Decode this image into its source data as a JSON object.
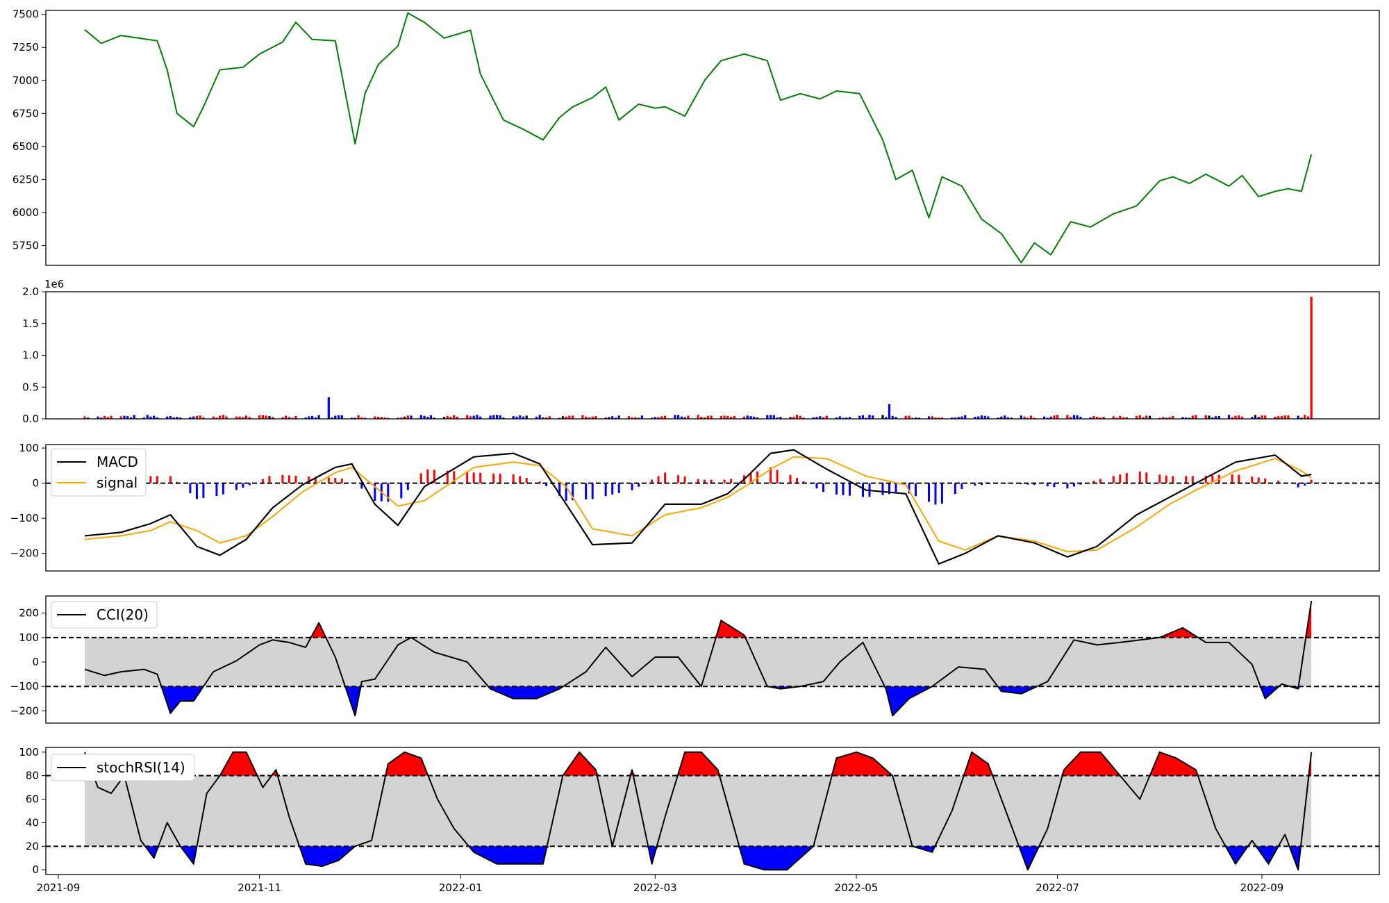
{
  "chart_data": [
    {
      "type": "line",
      "panel": "price",
      "color": "#008000",
      "ylim": [
        5600,
        7530
      ],
      "yticks": [
        5750,
        6000,
        6250,
        6500,
        6750,
        7000,
        7250,
        7500
      ],
      "x": [
        "2021-09-09",
        "2021-09-14",
        "2021-09-20",
        "2021-10-01",
        "2021-10-04",
        "2021-10-07",
        "2021-10-12",
        "2021-10-15",
        "2021-10-20",
        "2021-10-27",
        "2021-11-01",
        "2021-11-08",
        "2021-11-12",
        "2021-11-17",
        "2021-11-24",
        "2021-11-30",
        "2021-12-03",
        "2021-12-07",
        "2021-12-13",
        "2021-12-16",
        "2021-12-21",
        "2021-12-27",
        "2022-01-04",
        "2022-01-07",
        "2022-01-14",
        "2022-01-20",
        "2022-01-26",
        "2022-01-31",
        "2022-02-04",
        "2022-02-10",
        "2022-02-14",
        "2022-02-18",
        "2022-02-24",
        "2022-03-01",
        "2022-03-04",
        "2022-03-10",
        "2022-03-16",
        "2022-03-21",
        "2022-03-28",
        "2022-04-04",
        "2022-04-08",
        "2022-04-14",
        "2022-04-20",
        "2022-04-25",
        "2022-05-02",
        "2022-05-09",
        "2022-05-13",
        "2022-05-18",
        "2022-05-23",
        "2022-05-27",
        "2022-06-02",
        "2022-06-08",
        "2022-06-14",
        "2022-06-20",
        "2022-06-24",
        "2022-06-29",
        "2022-07-05",
        "2022-07-11",
        "2022-07-18",
        "2022-07-25",
        "2022-08-01",
        "2022-08-05",
        "2022-08-10",
        "2022-08-15",
        "2022-08-22",
        "2022-08-26",
        "2022-08-31",
        "2022-09-05",
        "2022-09-09",
        "2022-09-13",
        "2022-09-16"
      ],
      "values": [
        7385,
        7280,
        7340,
        7300,
        7080,
        6750,
        6650,
        6800,
        7080,
        7100,
        7200,
        7290,
        7440,
        7310,
        7300,
        6520,
        6900,
        7120,
        7260,
        7510,
        7440,
        7320,
        7380,
        7050,
        6700,
        6630,
        6550,
        6720,
        6800,
        6870,
        6950,
        6700,
        6820,
        6790,
        6800,
        6730,
        7000,
        7150,
        7200,
        7150,
        6850,
        6900,
        6860,
        6920,
        6900,
        6550,
        6250,
        6320,
        5960,
        6270,
        6200,
        5950,
        5840,
        5620,
        5770,
        5680,
        5930,
        5890,
        5990,
        6050,
        6240,
        6270,
        6220,
        6290,
        6200,
        6280,
        6120,
        6160,
        6180,
        6160,
        6440
      ]
    },
    {
      "type": "bar",
      "panel": "volume",
      "exponent_label": "1e6",
      "ylim": [
        0,
        2.0
      ],
      "yticks": [
        "0.0",
        "0.5",
        "1.0",
        "1.5",
        "2.0"
      ],
      "colors": {
        "up": "#ff0000",
        "down": "#0000ff",
        "flat": "#000000"
      },
      "notable_bars": [
        {
          "x": "2021-11-22",
          "value": 0.34,
          "color": "#0000ff"
        },
        {
          "x": "2022-05-11",
          "value": 0.23,
          "color": "#0000ff"
        },
        {
          "x": "2022-09-16",
          "value": 1.92,
          "color": "#ff0000"
        }
      ],
      "typical_value": 0.04
    },
    {
      "type": "line",
      "panel": "macd",
      "ylim": [
        -250,
        110
      ],
      "yticks": [
        -200,
        -100,
        0,
        100
      ],
      "legend": [
        "MACD",
        "signal"
      ],
      "series": [
        {
          "name": "MACD",
          "color": "#000000",
          "x": [
            "2021-09-09",
            "2021-09-20",
            "2021-09-29",
            "2021-10-05",
            "2021-10-13",
            "2021-10-20",
            "2021-10-28",
            "2021-11-05",
            "2021-11-14",
            "2021-11-24",
            "2021-11-29",
            "2021-12-06",
            "2021-12-13",
            "2021-12-21",
            "2022-01-05",
            "2022-01-17",
            "2022-01-25",
            "2022-02-02",
            "2022-02-10",
            "2022-02-22",
            "2022-03-04",
            "2022-03-15",
            "2022-03-23",
            "2022-03-29",
            "2022-04-05",
            "2022-04-12",
            "2022-04-22",
            "2022-05-04",
            "2022-05-16",
            "2022-05-26",
            "2022-06-03",
            "2022-06-13",
            "2022-06-24",
            "2022-07-04",
            "2022-07-13",
            "2022-07-25",
            "2022-08-04",
            "2022-08-12",
            "2022-08-24",
            "2022-09-05",
            "2022-09-13",
            "2022-09-16"
          ],
          "values": [
            -150,
            -140,
            -115,
            -90,
            -180,
            -205,
            -160,
            -70,
            -5,
            45,
            55,
            -60,
            -120,
            -10,
            75,
            85,
            55,
            -60,
            -175,
            -170,
            -60,
            -60,
            -30,
            20,
            85,
            95,
            40,
            -20,
            -30,
            -230,
            -200,
            -150,
            -170,
            -210,
            -180,
            -90,
            -40,
            0,
            60,
            80,
            20,
            25
          ]
        },
        {
          "name": "signal",
          "color": "#ffa500",
          "x": [
            "2021-09-09",
            "2021-09-20",
            "2021-09-29",
            "2021-10-05",
            "2021-10-13",
            "2021-10-20",
            "2021-10-28",
            "2021-11-05",
            "2021-11-14",
            "2021-11-24",
            "2021-11-29",
            "2021-12-06",
            "2021-12-13",
            "2021-12-21",
            "2022-01-05",
            "2022-01-17",
            "2022-01-25",
            "2022-02-02",
            "2022-02-10",
            "2022-02-22",
            "2022-03-04",
            "2022-03-15",
            "2022-03-23",
            "2022-03-29",
            "2022-04-05",
            "2022-04-12",
            "2022-04-22",
            "2022-05-04",
            "2022-05-16",
            "2022-05-26",
            "2022-06-03",
            "2022-06-13",
            "2022-06-24",
            "2022-07-04",
            "2022-07-13",
            "2022-07-25",
            "2022-08-04",
            "2022-08-12",
            "2022-08-24",
            "2022-09-05",
            "2022-09-13",
            "2022-09-16"
          ],
          "values": [
            -160,
            -150,
            -135,
            -110,
            -135,
            -170,
            -150,
            -95,
            -25,
            30,
            45,
            -10,
            -65,
            -50,
            45,
            60,
            50,
            -10,
            -130,
            -150,
            -90,
            -70,
            -40,
            -5,
            40,
            75,
            70,
            20,
            -5,
            -165,
            -190,
            -150,
            -165,
            -195,
            -190,
            -125,
            -60,
            -20,
            35,
            70,
            35,
            15
          ]
        }
      ],
      "histogram": {
        "up_color": "#ff0000",
        "down_color": "#0000ff",
        "note": "MACD minus signal"
      }
    },
    {
      "type": "line",
      "panel": "cci",
      "ylim": [
        -250,
        270
      ],
      "yticks": [
        -200,
        -100,
        0,
        100,
        200
      ],
      "thresholds": [
        100,
        -100
      ],
      "band_color": "#d3d3d3",
      "overbought_color": "#ff0000",
      "oversold_color": "#0000ff",
      "legend": [
        "CCI(20)"
      ],
      "series": [
        {
          "name": "CCI(20)",
          "color": "#000000",
          "x": [
            "2021-09-09",
            "2021-09-15",
            "2021-09-20",
            "2021-09-27",
            "2021-10-01",
            "2021-10-05",
            "2021-10-08",
            "2021-10-12",
            "2021-10-18",
            "2021-10-25",
            "2021-11-01",
            "2021-11-05",
            "2021-11-10",
            "2021-11-15",
            "2021-11-19",
            "2021-11-24",
            "2021-11-30",
            "2021-12-02",
            "2021-12-06",
            "2021-12-13",
            "2021-12-17",
            "2021-12-24",
            "2022-01-03",
            "2022-01-10",
            "2022-01-17",
            "2022-01-24",
            "2022-01-31",
            "2022-02-08",
            "2022-02-14",
            "2022-02-22",
            "2022-03-01",
            "2022-03-08",
            "2022-03-15",
            "2022-03-21",
            "2022-03-28",
            "2022-04-04",
            "2022-04-08",
            "2022-04-14",
            "2022-04-21",
            "2022-04-26",
            "2022-05-03",
            "2022-05-10",
            "2022-05-12",
            "2022-05-17",
            "2022-05-24",
            "2022-06-01",
            "2022-06-09",
            "2022-06-14",
            "2022-06-20",
            "2022-06-28",
            "2022-07-06",
            "2022-07-13",
            "2022-07-20",
            "2022-08-01",
            "2022-08-08",
            "2022-08-15",
            "2022-08-22",
            "2022-08-29",
            "2022-09-02",
            "2022-09-07",
            "2022-09-12",
            "2022-09-16"
          ],
          "values": [
            -30,
            -55,
            -40,
            -30,
            -50,
            -210,
            -160,
            -160,
            -40,
            5,
            70,
            90,
            80,
            60,
            160,
            20,
            -220,
            -80,
            -70,
            70,
            100,
            40,
            0,
            -110,
            -150,
            -150,
            -110,
            -40,
            60,
            -60,
            20,
            20,
            -100,
            170,
            110,
            -100,
            -110,
            -100,
            -80,
            0,
            80,
            -110,
            -220,
            -150,
            -100,
            -20,
            -30,
            -120,
            -130,
            -80,
            90,
            70,
            80,
            100,
            140,
            80,
            80,
            -10,
            -150,
            -90,
            -110,
            250
          ]
        }
      ]
    },
    {
      "type": "line",
      "panel": "stochrsi",
      "ylim": [
        -4,
        104
      ],
      "yticks": [
        0,
        20,
        40,
        60,
        80,
        100
      ],
      "thresholds": [
        80,
        20
      ],
      "band_color": "#d3d3d3",
      "overbought_color": "#ff0000",
      "oversold_color": "#0000ff",
      "legend": [
        "stochRSI(14)"
      ],
      "series": [
        {
          "name": "stochRSI(14)",
          "color": "#000000",
          "x": [
            "2021-09-09",
            "2021-09-13",
            "2021-09-17",
            "2021-09-21",
            "2021-09-26",
            "2021-09-30",
            "2021-10-04",
            "2021-10-08",
            "2021-10-12",
            "2021-10-16",
            "2021-10-20",
            "2021-10-24",
            "2021-10-28",
            "2021-11-02",
            "2021-11-06",
            "2021-11-10",
            "2021-11-15",
            "2021-11-20",
            "2021-11-25",
            "2021-11-30",
            "2021-12-05",
            "2021-12-10",
            "2021-12-15",
            "2021-12-20",
            "2021-12-25",
            "2021-12-30",
            "2022-01-05",
            "2022-01-12",
            "2022-01-20",
            "2022-01-26",
            "2022-02-01",
            "2022-02-06",
            "2022-02-11",
            "2022-02-16",
            "2022-02-22",
            "2022-02-28",
            "2022-03-04",
            "2022-03-10",
            "2022-03-15",
            "2022-03-20",
            "2022-03-28",
            "2022-04-03",
            "2022-04-10",
            "2022-04-18",
            "2022-04-25",
            "2022-05-01",
            "2022-05-06",
            "2022-05-12",
            "2022-05-18",
            "2022-05-24",
            "2022-05-30",
            "2022-06-05",
            "2022-06-10",
            "2022-06-16",
            "2022-06-22",
            "2022-06-28",
            "2022-07-03",
            "2022-07-08",
            "2022-07-14",
            "2022-07-20",
            "2022-07-26",
            "2022-08-01",
            "2022-08-06",
            "2022-08-12",
            "2022-08-18",
            "2022-08-24",
            "2022-08-29",
            "2022-09-03",
            "2022-09-08",
            "2022-09-12",
            "2022-09-16"
          ],
          "values": [
            100,
            70,
            65,
            80,
            25,
            10,
            40,
            20,
            5,
            65,
            80,
            100,
            100,
            70,
            85,
            45,
            5,
            3,
            8,
            20,
            25,
            90,
            100,
            95,
            60,
            35,
            15,
            5,
            5,
            5,
            80,
            100,
            85,
            20,
            85,
            5,
            45,
            100,
            100,
            85,
            5,
            0,
            0,
            20,
            95,
            100,
            95,
            80,
            20,
            15,
            50,
            100,
            90,
            45,
            0,
            35,
            85,
            100,
            100,
            80,
            60,
            100,
            95,
            85,
            35,
            5,
            25,
            5,
            30,
            0,
            100
          ]
        }
      ]
    }
  ],
  "x_axis": {
    "tick_labels": [
      "2021-09",
      "2021-11",
      "2022-01",
      "2022-03",
      "2022-05",
      "2022-07",
      "2022-09"
    ],
    "start": "2021-09-09",
    "end": "2022-09-16"
  }
}
